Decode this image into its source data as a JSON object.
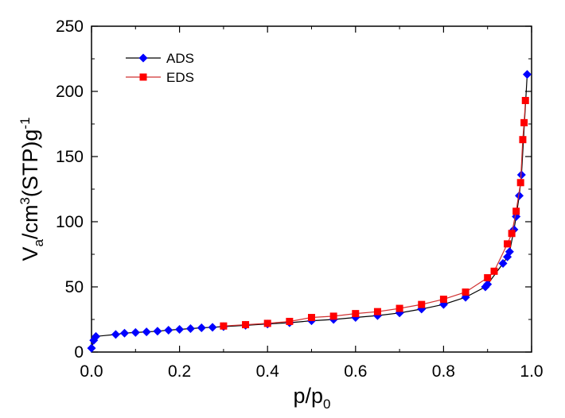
{
  "chart_data": {
    "type": "line",
    "title": "",
    "xlabel": {
      "main": "p/p",
      "sub": "0"
    },
    "ylabel": {
      "v": "V",
      "v_sub": "a",
      "mid": "/cm",
      "sup1": "3",
      "mid2": "(STP)g",
      "sup2": "-1"
    },
    "xlim": [
      0.0,
      1.0
    ],
    "ylim": [
      0,
      250
    ],
    "xticks": [
      0.0,
      0.2,
      0.4,
      0.6,
      0.8,
      1.0
    ],
    "xtick_labels": [
      "0.0",
      "0.2",
      "0.4",
      "0.6",
      "0.8",
      "1.0"
    ],
    "yticks": [
      0,
      50,
      100,
      150,
      200,
      250
    ],
    "ytick_labels": [
      "0",
      "50",
      "100",
      "150",
      "200",
      "250"
    ],
    "grid": false,
    "legend_position": "top-left",
    "series": [
      {
        "name": "ADS",
        "color": "#0000FF",
        "line_color": "#000000",
        "marker": "diamond",
        "x": [
          0.0,
          0.005,
          0.01,
          0.055,
          0.075,
          0.1,
          0.125,
          0.15,
          0.175,
          0.2,
          0.225,
          0.25,
          0.275,
          0.3,
          0.35,
          0.4,
          0.45,
          0.5,
          0.55,
          0.6,
          0.65,
          0.7,
          0.75,
          0.8,
          0.85,
          0.895,
          0.9,
          0.935,
          0.945,
          0.95,
          0.96,
          0.965,
          0.972,
          0.977,
          0.99
        ],
        "y": [
          3,
          9,
          12,
          13.5,
          14.5,
          15,
          15.5,
          16,
          16.8,
          17.4,
          18,
          18.6,
          19,
          19.5,
          20.5,
          21.5,
          22.5,
          24,
          25,
          26.5,
          28,
          30,
          33,
          36.5,
          42,
          50,
          52,
          68,
          73,
          77,
          94,
          104,
          120,
          136,
          213
        ]
      },
      {
        "name": "EDS",
        "color": "#FF0000",
        "line_color": "#D03030",
        "marker": "square",
        "x": [
          0.3,
          0.35,
          0.4,
          0.45,
          0.5,
          0.55,
          0.6,
          0.65,
          0.7,
          0.75,
          0.8,
          0.85,
          0.9,
          0.915,
          0.945,
          0.955,
          0.965,
          0.975,
          0.98,
          0.983,
          0.986
        ],
        "y": [
          20,
          21,
          22,
          23.5,
          26.5,
          27.5,
          29.5,
          31,
          33.5,
          36.5,
          40.5,
          46,
          57,
          62,
          83,
          91,
          108,
          130,
          163,
          176,
          193
        ]
      }
    ]
  }
}
